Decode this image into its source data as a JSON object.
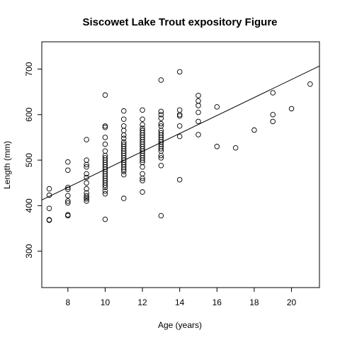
{
  "chart_data": {
    "type": "scatter",
    "title": "Siscowet Lake Trout expository Figure",
    "xlabel": "Age (years)",
    "ylabel": "Length (mm)",
    "xlim": [
      6.6,
      21.5
    ],
    "ylim": [
      220,
      760
    ],
    "xticks": [
      8,
      10,
      12,
      14,
      16,
      18,
      20
    ],
    "yticks": [
      300,
      400,
      500,
      600,
      700
    ],
    "grid": false,
    "legend": "none",
    "series": [
      {
        "points": [
          [
            7,
            437
          ],
          [
            7,
            423
          ],
          [
            7,
            394
          ],
          [
            7,
            369
          ],
          [
            7,
            368
          ],
          [
            8,
            496
          ],
          [
            8,
            478
          ],
          [
            8,
            440
          ],
          [
            8,
            436
          ],
          [
            8,
            422
          ],
          [
            8,
            410
          ],
          [
            8,
            406
          ],
          [
            8,
            380
          ],
          [
            8,
            378
          ],
          [
            9,
            545
          ],
          [
            9,
            500
          ],
          [
            9,
            490
          ],
          [
            9,
            485
          ],
          [
            9,
            470
          ],
          [
            9,
            462
          ],
          [
            9,
            450
          ],
          [
            9,
            437
          ],
          [
            9,
            428
          ],
          [
            9,
            422
          ],
          [
            9,
            418
          ],
          [
            9,
            415
          ],
          [
            9,
            410
          ],
          [
            10,
            643
          ],
          [
            10,
            575
          ],
          [
            10,
            572
          ],
          [
            10,
            550
          ],
          [
            10,
            535
          ],
          [
            10,
            520
          ],
          [
            10,
            510
          ],
          [
            10,
            505
          ],
          [
            10,
            500
          ],
          [
            10,
            495
          ],
          [
            10,
            490
          ],
          [
            10,
            485
          ],
          [
            10,
            480
          ],
          [
            10,
            475
          ],
          [
            10,
            470
          ],
          [
            10,
            465
          ],
          [
            10,
            460
          ],
          [
            10,
            455
          ],
          [
            10,
            450
          ],
          [
            10,
            445
          ],
          [
            10,
            440
          ],
          [
            10,
            432
          ],
          [
            10,
            426
          ],
          [
            10,
            370
          ],
          [
            11,
            608
          ],
          [
            11,
            590
          ],
          [
            11,
            575
          ],
          [
            11,
            565
          ],
          [
            11,
            555
          ],
          [
            11,
            548
          ],
          [
            11,
            540
          ],
          [
            11,
            535
          ],
          [
            11,
            530
          ],
          [
            11,
            525
          ],
          [
            11,
            520
          ],
          [
            11,
            515
          ],
          [
            11,
            510
          ],
          [
            11,
            505
          ],
          [
            11,
            500
          ],
          [
            11,
            495
          ],
          [
            11,
            490
          ],
          [
            11,
            485
          ],
          [
            11,
            480
          ],
          [
            11,
            475
          ],
          [
            11,
            468
          ],
          [
            11,
            416
          ],
          [
            12,
            610
          ],
          [
            12,
            590
          ],
          [
            12,
            578
          ],
          [
            12,
            570
          ],
          [
            12,
            565
          ],
          [
            12,
            560
          ],
          [
            12,
            555
          ],
          [
            12,
            550
          ],
          [
            12,
            545
          ],
          [
            12,
            540
          ],
          [
            12,
            535
          ],
          [
            12,
            530
          ],
          [
            12,
            525
          ],
          [
            12,
            520
          ],
          [
            12,
            515
          ],
          [
            12,
            510
          ],
          [
            12,
            505
          ],
          [
            12,
            500
          ],
          [
            12,
            495
          ],
          [
            12,
            485
          ],
          [
            12,
            470
          ],
          [
            12,
            460
          ],
          [
            12,
            455
          ],
          [
            12,
            430
          ],
          [
            13,
            676
          ],
          [
            13,
            607
          ],
          [
            13,
            600
          ],
          [
            13,
            592
          ],
          [
            13,
            580
          ],
          [
            13,
            575
          ],
          [
            13,
            565
          ],
          [
            13,
            560
          ],
          [
            13,
            555
          ],
          [
            13,
            550
          ],
          [
            13,
            545
          ],
          [
            13,
            540
          ],
          [
            13,
            535
          ],
          [
            13,
            530
          ],
          [
            13,
            525
          ],
          [
            13,
            520
          ],
          [
            13,
            510
          ],
          [
            13,
            505
          ],
          [
            13,
            488
          ],
          [
            13,
            378
          ],
          [
            14,
            694
          ],
          [
            14,
            610
          ],
          [
            14,
            600
          ],
          [
            14,
            597
          ],
          [
            14,
            575
          ],
          [
            14,
            552
          ],
          [
            14,
            457
          ],
          [
            15,
            642
          ],
          [
            15,
            630
          ],
          [
            15,
            620
          ],
          [
            15,
            605
          ],
          [
            15,
            585
          ],
          [
            15,
            556
          ],
          [
            16,
            617
          ],
          [
            16,
            530
          ],
          [
            17,
            527
          ],
          [
            18,
            566
          ],
          [
            19,
            648
          ],
          [
            19,
            600
          ],
          [
            19,
            585
          ],
          [
            20,
            613
          ],
          [
            21,
            667
          ]
        ]
      }
    ],
    "fit_line": {
      "intercept": 282.1,
      "slope": 19.75
    }
  }
}
